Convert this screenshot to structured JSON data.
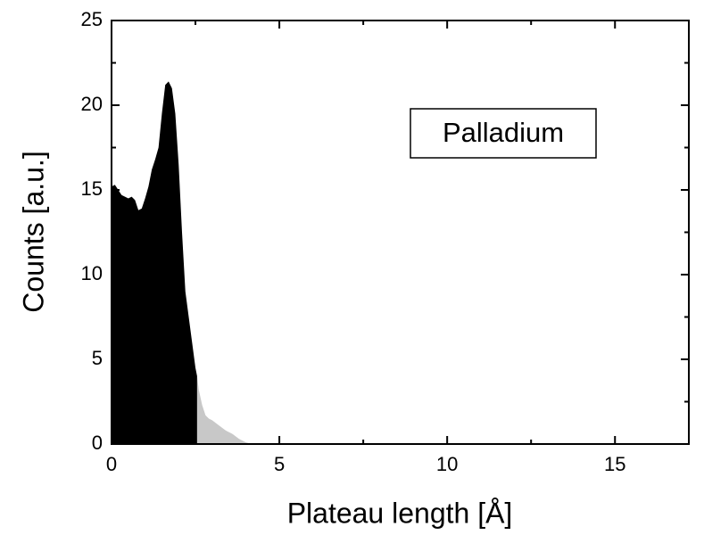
{
  "chart_data": {
    "type": "area",
    "xlabel": "Plateau length [Å]",
    "ylabel": "Counts [a.u.]",
    "annotation": "Palladium",
    "xlim": [
      0,
      17.2
    ],
    "ylim": [
      0,
      25
    ],
    "xticks": [
      0,
      5,
      10,
      15
    ],
    "yticks": [
      0,
      5,
      10,
      15,
      20,
      25
    ],
    "series": [
      {
        "color": "#000000",
        "x": [
          0,
          0.1,
          0.2,
          0.3,
          0.5,
          0.6,
          0.7,
          0.8,
          0.9,
          1.0,
          1.1,
          1.2,
          1.3,
          1.4,
          1.5,
          1.6,
          1.7,
          1.8,
          1.9,
          2.0,
          2.1,
          2.2,
          2.3,
          2.4,
          2.5,
          2.55
        ],
        "values": [
          15.2,
          15.3,
          15.0,
          14.7,
          14.5,
          14.6,
          14.4,
          13.8,
          13.9,
          14.5,
          15.2,
          16.2,
          16.8,
          17.5,
          19.5,
          21.2,
          21.4,
          21.0,
          19.5,
          16.5,
          12.5,
          9.0,
          7.5,
          6.0,
          4.5,
          4.0
        ]
      },
      {
        "color": "#c8c8c8",
        "x": [
          2.55,
          2.6,
          2.7,
          2.8,
          2.9,
          3.0,
          3.2,
          3.4,
          3.6,
          3.8,
          4.0,
          4.2
        ],
        "values": [
          4.0,
          3.2,
          2.3,
          1.7,
          1.5,
          1.4,
          1.1,
          0.8,
          0.6,
          0.3,
          0.1,
          0
        ]
      }
    ]
  }
}
